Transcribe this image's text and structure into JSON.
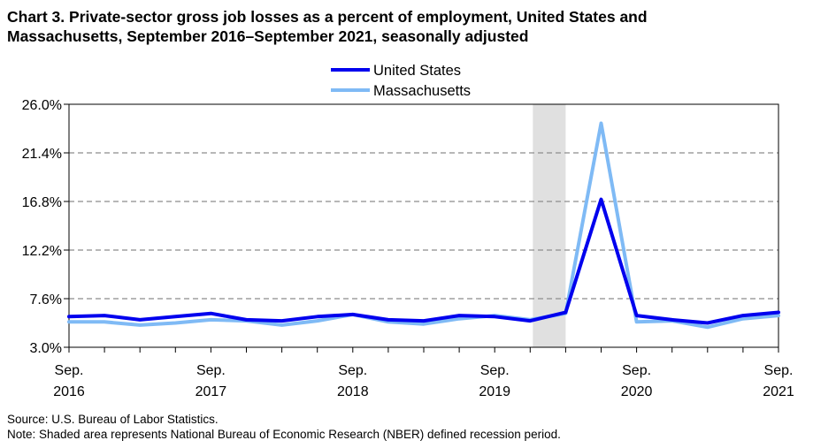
{
  "title_lines": [
    "Chart 3. Private-sector gross job losses as a percent of employment, United States and",
    "Massachusetts, September 2016–September 2021, seasonally adjusted"
  ],
  "source": "Source: U.S. Bureau of Labor Statistics.",
  "note": "Note: Shaded area represents National Bureau of Economic Research (NBER) defined recession period.",
  "chart_data": {
    "type": "line",
    "x": [
      "Sep 2016",
      "Dec 2016",
      "Mar 2017",
      "Jun 2017",
      "Sep 2017",
      "Dec 2017",
      "Mar 2018",
      "Jun 2018",
      "Sep 2018",
      "Dec 2018",
      "Mar 2019",
      "Jun 2019",
      "Sep 2019",
      "Dec 2019",
      "Mar 2020",
      "Jun 2020",
      "Sep 2020",
      "Dec 2020",
      "Mar 2021",
      "Jun 2021",
      "Sep 2021"
    ],
    "series": [
      {
        "name": "United States",
        "color": "#0000ee",
        "values": [
          5.9,
          6.0,
          5.6,
          5.9,
          6.2,
          5.6,
          5.5,
          5.9,
          6.1,
          5.6,
          5.5,
          6.0,
          5.9,
          5.5,
          6.3,
          17.0,
          6.0,
          5.6,
          5.3,
          6.0,
          6.3
        ]
      },
      {
        "name": "Massachusetts",
        "color": "#7fbaf5",
        "values": [
          5.4,
          5.4,
          5.1,
          5.3,
          5.6,
          5.5,
          5.1,
          5.5,
          6.1,
          5.4,
          5.2,
          5.7,
          6.0,
          5.6,
          6.2,
          24.2,
          5.4,
          5.5,
          4.9,
          5.7,
          6.0
        ]
      }
    ],
    "yticks": [
      "3.0%",
      "7.6%",
      "12.2%",
      "16.8%",
      "21.4%",
      "26.0%"
    ],
    "ylim": [
      3.0,
      26.0
    ],
    "xtick_labels": [
      {
        "line1": "Sep.",
        "line2": "2016"
      },
      {
        "line1": "Sep.",
        "line2": "2017"
      },
      {
        "line1": "Sep.",
        "line2": "2018"
      },
      {
        "line1": "Sep.",
        "line2": "2019"
      },
      {
        "line1": "Sep.",
        "line2": "2020"
      },
      {
        "line1": "Sep.",
        "line2": "2021"
      }
    ],
    "recession": {
      "start": "Dec 2019",
      "end": "Mar 2020",
      "color": "#e0e0e0"
    },
    "grid": "dashed horizontal",
    "legend_position": "top-center"
  }
}
